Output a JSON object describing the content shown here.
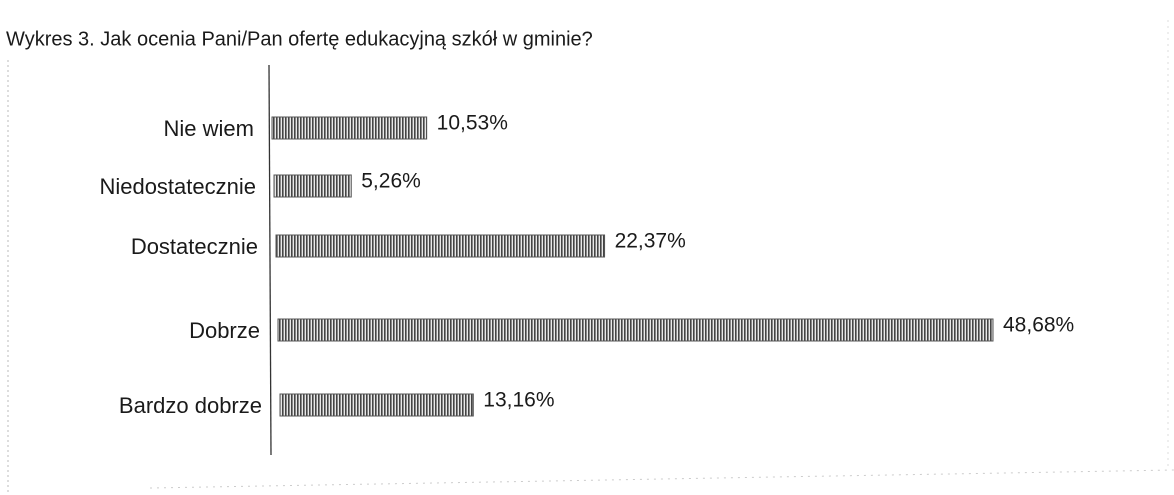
{
  "chart_data": {
    "type": "bar",
    "orientation": "horizontal",
    "title": "Wykres 3. Jak ocenia Pani/Pan ofertę edukacyjną szkół w gminie?",
    "categories": [
      "Nie wiem",
      "Niedostatecznie",
      "Dostatecznie",
      "Dobrze",
      "Bardzo dobrze"
    ],
    "values": [
      10.53,
      5.26,
      22.37,
      48.68,
      13.16
    ],
    "value_labels": [
      "10,53%",
      "5,26%",
      "22,37%",
      "48,68%",
      "13,16%"
    ],
    "color": "#555555"
  }
}
